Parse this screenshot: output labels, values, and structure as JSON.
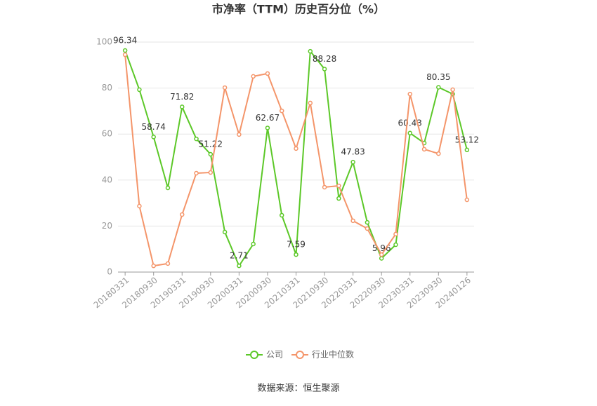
{
  "chart_data": {
    "type": "line",
    "title": "市净率（TTM）历史百分位（%）",
    "source": "数据来源：恒生聚源",
    "categories": [
      "20180331",
      null,
      "20180930",
      null,
      "20190331",
      null,
      "20190930",
      null,
      "20200331",
      null,
      "20200930",
      null,
      "20210331",
      null,
      "20210930",
      null,
      "20220331",
      null,
      "20220930",
      null,
      "20230331",
      null,
      "20230930",
      null,
      "20240126"
    ],
    "series": [
      {
        "name": "公司",
        "color": "#5cc828",
        "values": [
          96.34,
          79.3,
          58.74,
          36.6,
          71.82,
          57.9,
          51.22,
          17.4,
          2.71,
          12.2,
          62.67,
          24.7,
          7.59,
          96.0,
          88.28,
          32.0,
          47.83,
          21.6,
          5.96,
          11.9,
          60.43,
          56.1,
          80.35,
          77.4,
          53.12
        ],
        "value_labels": [
          "96.34",
          null,
          "58.74",
          null,
          "71.82",
          null,
          "51.22",
          null,
          "2.71",
          null,
          "62.67",
          null,
          "7.59",
          null,
          "88.28",
          null,
          "47.83",
          null,
          "5.96",
          null,
          "60.43",
          null,
          "80.35",
          null,
          "53.12"
        ]
      },
      {
        "name": "行业中位数",
        "color": "#f4956a",
        "values": [
          94.5,
          28.7,
          2.7,
          3.7,
          25.0,
          43.0,
          43.3,
          80.2,
          59.8,
          85.1,
          86.3,
          70.1,
          53.7,
          73.5,
          36.9,
          37.5,
          22.3,
          18.9,
          7.6,
          16.5,
          77.4,
          53.4,
          51.5,
          79.3,
          31.4
        ]
      }
    ],
    "ylim": [
      0,
      100
    ],
    "yticks": [
      0,
      20,
      40,
      60,
      80,
      100
    ],
    "grid": true
  }
}
